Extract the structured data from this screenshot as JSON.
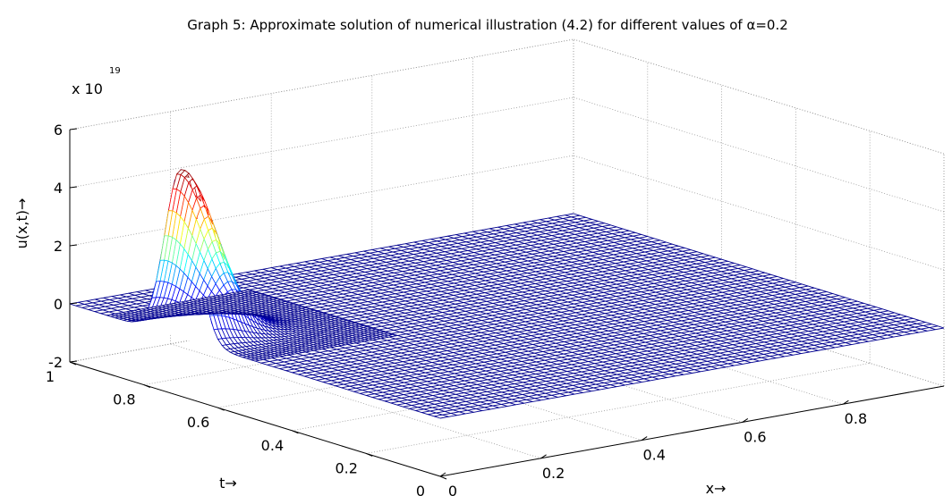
{
  "chart_data": {
    "type": "surface-mesh",
    "title": "Graph 5: Approximate solution of numerical illustration (4.2) for different values of α=0.2",
    "xlabel": "x→",
    "ylabel": "t→",
    "zlabel": "u(x,t)→",
    "exponent_label": "x 10",
    "exponent_power": "19",
    "xlim": [
      0,
      1
    ],
    "ylim": [
      0,
      1
    ],
    "zlim": [
      -2,
      6
    ],
    "x_ticks": [
      "0",
      "0.2",
      "0.4",
      "0.6",
      "0.8"
    ],
    "t_ticks": [
      "0",
      "0.2",
      "0.4",
      "0.6",
      "0.8",
      "1"
    ],
    "z_ticks": [
      "-2",
      "0",
      "2",
      "4",
      "6"
    ],
    "x_tick_values": [
      0,
      0.2,
      0.4,
      0.6,
      0.8
    ],
    "t_tick_values": [
      0,
      0.2,
      0.4,
      0.6,
      0.8,
      1.0
    ],
    "z_tick_values": [
      -2,
      0,
      2,
      4,
      6
    ],
    "grid": true,
    "surface": {
      "description_values": "flat at u=0 except a single peak",
      "peak_x": 0.0,
      "peak_t": 0.7,
      "peak_u": 5.8,
      "peak_width_x": 0.09,
      "peak_width_t": 0.06
    },
    "colormap": [
      "#00008f",
      "#0000ff",
      "#00ffff",
      "#ffff00",
      "#ff0000",
      "#800000"
    ]
  }
}
